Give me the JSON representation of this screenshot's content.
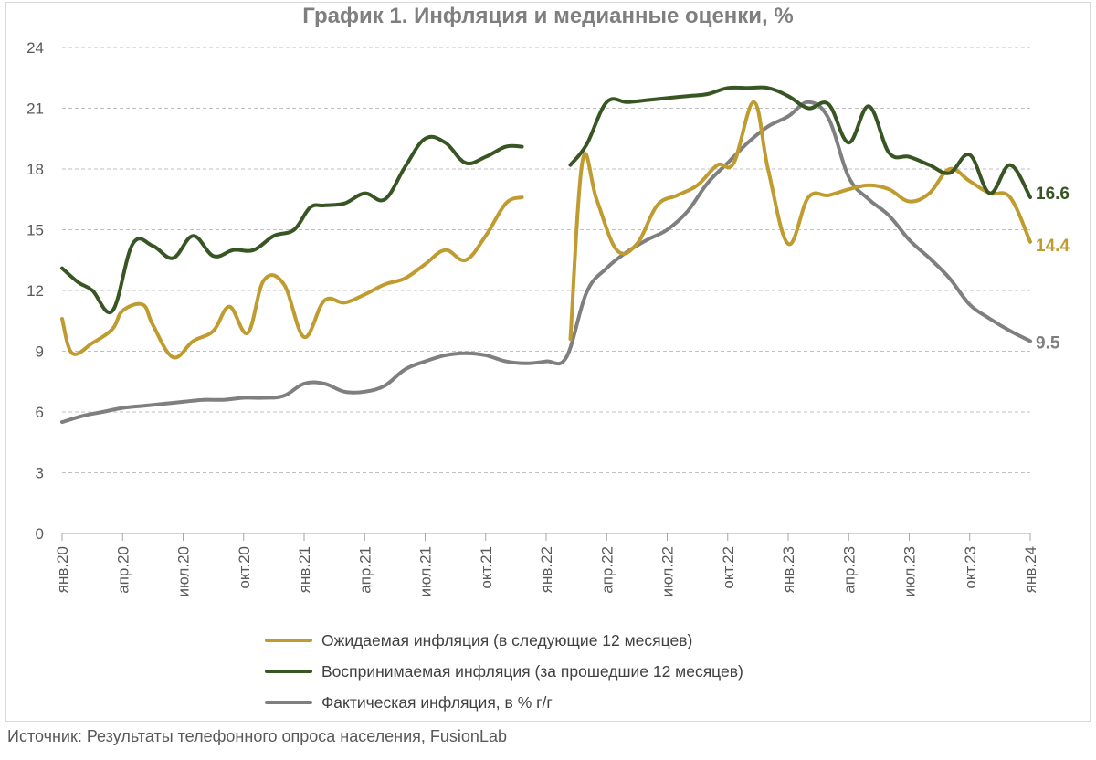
{
  "chart_data": {
    "type": "line",
    "title": "График 1. Инфляция и медианные оценки, %",
    "xlabel": "",
    "ylabel": "",
    "ylim": [
      0,
      24
    ],
    "yticks": [
      0,
      3,
      6,
      9,
      12,
      15,
      18,
      21,
      24
    ],
    "grid": "horizontal",
    "legend_position": "bottom",
    "x_tick_labels": [
      {
        "m": 0,
        "label": "янв.20"
      },
      {
        "m": 3,
        "label": "апр.20"
      },
      {
        "m": 6,
        "label": "июл.20"
      },
      {
        "m": 9,
        "label": "окт.20"
      },
      {
        "m": 12,
        "label": "янв.21"
      },
      {
        "m": 15,
        "label": "апр.21"
      },
      {
        "m": 18,
        "label": "июл.21"
      },
      {
        "m": 21,
        "label": "окт.21"
      },
      {
        "m": 24,
        "label": "янв.22"
      },
      {
        "m": 27,
        "label": "апр.22"
      },
      {
        "m": 30,
        "label": "июл.22"
      },
      {
        "m": 33,
        "label": "окт.22"
      },
      {
        "m": 36,
        "label": "янв.23"
      },
      {
        "m": 39,
        "label": "апр.23"
      },
      {
        "m": 42,
        "label": "июл.23"
      },
      {
        "m": 45,
        "label": "окт.23"
      },
      {
        "m": 48,
        "label": "янв.24"
      }
    ],
    "series": [
      {
        "name": "Ожидаемая инфляция (в следующие 12 месяцев)",
        "color": "#bf9b30",
        "end_label": "14.4",
        "segments": [
          [
            [
              0,
              10.6
            ],
            [
              0.5,
              8.9
            ],
            [
              1.5,
              9.4
            ],
            [
              2.5,
              10.1
            ],
            [
              3,
              11.0
            ],
            [
              4,
              11.3
            ],
            [
              4.5,
              10.3
            ],
            [
              5.5,
              8.7
            ],
            [
              6.5,
              9.5
            ],
            [
              7.5,
              10.0
            ],
            [
              8.3,
              11.2
            ],
            [
              9.2,
              9.9
            ],
            [
              10,
              12.5
            ],
            [
              11,
              12.3
            ],
            [
              12,
              9.7
            ],
            [
              13,
              11.5
            ],
            [
              14,
              11.4
            ],
            [
              15,
              11.8
            ],
            [
              16,
              12.3
            ],
            [
              17,
              12.6
            ],
            [
              18,
              13.3
            ],
            [
              19,
              14.0
            ],
            [
              20,
              13.5
            ],
            [
              21,
              14.7
            ],
            [
              22,
              16.3
            ],
            [
              22.8,
              16.6
            ]
          ],
          [
            [
              25.2,
              9.6
            ],
            [
              25.8,
              18.4
            ],
            [
              26.5,
              16.5
            ],
            [
              27.5,
              14.0
            ],
            [
              28.5,
              14.3
            ],
            [
              29.5,
              16.2
            ],
            [
              30.5,
              16.7
            ],
            [
              31.5,
              17.2
            ],
            [
              32.5,
              18.2
            ],
            [
              33.3,
              18.3
            ],
            [
              34.3,
              21.3
            ],
            [
              35,
              18.0
            ],
            [
              36,
              14.3
            ],
            [
              37,
              16.6
            ],
            [
              38,
              16.7
            ],
            [
              39,
              17.0
            ],
            [
              40,
              17.2
            ],
            [
              41,
              17.0
            ],
            [
              42,
              16.4
            ],
            [
              43,
              16.8
            ],
            [
              44,
              18.0
            ],
            [
              45,
              17.4
            ],
            [
              46,
              16.8
            ],
            [
              47,
              16.6
            ],
            [
              48,
              14.4
            ]
          ]
        ]
      },
      {
        "name": "Воспринимаемая инфляция (за прошедшие 12 месяцев)",
        "color": "#375623",
        "end_label": "16.6",
        "segments": [
          [
            [
              0,
              13.1
            ],
            [
              0.8,
              12.4
            ],
            [
              1.5,
              12.0
            ],
            [
              2.5,
              11.0
            ],
            [
              3.5,
              14.3
            ],
            [
              4.5,
              14.2
            ],
            [
              5.5,
              13.6
            ],
            [
              6.5,
              14.7
            ],
            [
              7.5,
              13.7
            ],
            [
              8.5,
              14.0
            ],
            [
              9.5,
              14.0
            ],
            [
              10.5,
              14.7
            ],
            [
              11.5,
              15.0
            ],
            [
              12.3,
              16.1
            ],
            [
              13,
              16.2
            ],
            [
              14,
              16.3
            ],
            [
              15,
              16.8
            ],
            [
              16,
              16.5
            ],
            [
              17,
              18.1
            ],
            [
              18,
              19.5
            ],
            [
              19,
              19.3
            ],
            [
              20,
              18.3
            ],
            [
              21,
              18.6
            ],
            [
              22,
              19.1
            ],
            [
              22.8,
              19.1
            ]
          ],
          [
            [
              25.2,
              18.2
            ],
            [
              26,
              19.2
            ],
            [
              27,
              21.3
            ],
            [
              28,
              21.3
            ],
            [
              29,
              21.4
            ],
            [
              30,
              21.5
            ],
            [
              31,
              21.6
            ],
            [
              32,
              21.7
            ],
            [
              33,
              22.0
            ],
            [
              34,
              22.0
            ],
            [
              35,
              22.0
            ],
            [
              36,
              21.6
            ],
            [
              37,
              21.0
            ],
            [
              38,
              21.2
            ],
            [
              39,
              19.3
            ],
            [
              40,
              21.1
            ],
            [
              41,
              18.8
            ],
            [
              42,
              18.6
            ],
            [
              43,
              18.2
            ],
            [
              44,
              17.8
            ],
            [
              45,
              18.7
            ],
            [
              46,
              16.8
            ],
            [
              47,
              18.2
            ],
            [
              48,
              16.6
            ]
          ]
        ]
      },
      {
        "name": "Фактическая инфляция, в % г/г",
        "color": "#7f7f7f",
        "end_label": "9.5",
        "segments": [
          [
            [
              0,
              5.5
            ],
            [
              1,
              5.8
            ],
            [
              2,
              6.0
            ],
            [
              3,
              6.2
            ],
            [
              4,
              6.3
            ],
            [
              5,
              6.4
            ],
            [
              6,
              6.5
            ],
            [
              7,
              6.6
            ],
            [
              8,
              6.6
            ],
            [
              9,
              6.7
            ],
            [
              10,
              6.7
            ],
            [
              11,
              6.8
            ],
            [
              12,
              7.4
            ],
            [
              13,
              7.4
            ],
            [
              14,
              7.0
            ],
            [
              15,
              7.0
            ],
            [
              16,
              7.3
            ],
            [
              17,
              8.1
            ],
            [
              18,
              8.5
            ],
            [
              19,
              8.8
            ],
            [
              20,
              8.9
            ],
            [
              21,
              8.8
            ],
            [
              22,
              8.5
            ],
            [
              23,
              8.4
            ],
            [
              24,
              8.5
            ],
            [
              25,
              8.7
            ],
            [
              26,
              11.9
            ],
            [
              27,
              13.1
            ],
            [
              28,
              13.9
            ],
            [
              29,
              14.5
            ],
            [
              30,
              15.0
            ],
            [
              31,
              15.9
            ],
            [
              32,
              17.3
            ],
            [
              33,
              18.3
            ],
            [
              34,
              19.3
            ],
            [
              35,
              20.1
            ],
            [
              36,
              20.6
            ],
            [
              37,
              21.3
            ],
            [
              38,
              20.5
            ],
            [
              39,
              17.6
            ],
            [
              40,
              16.5
            ],
            [
              41,
              15.7
            ],
            [
              42,
              14.5
            ],
            [
              43,
              13.6
            ],
            [
              44,
              12.6
            ],
            [
              45,
              11.3
            ],
            [
              46,
              10.6
            ],
            [
              47,
              10.0
            ],
            [
              48,
              9.5
            ]
          ]
        ]
      }
    ]
  },
  "source_text": "Источник: Результаты телефонного опроса населения, FusionLab"
}
